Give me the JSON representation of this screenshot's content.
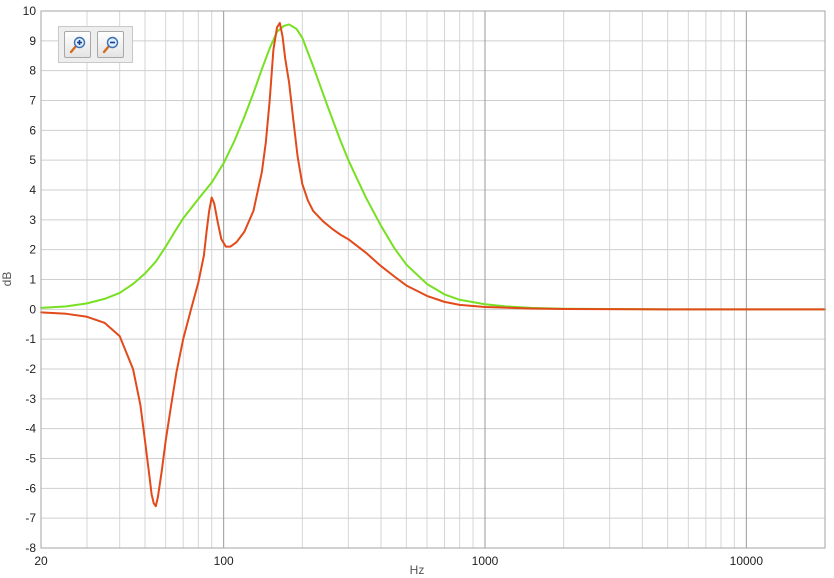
{
  "chart_data": {
    "type": "line",
    "title": "",
    "xlabel": "Hz",
    "ylabel": "dB",
    "xscale": "log",
    "xlim": [
      20,
      20000
    ],
    "ylim": [
      -8,
      10
    ],
    "grid": true,
    "legend": "none",
    "x_tick_labels": [
      {
        "value": 20,
        "label": "20"
      },
      {
        "value": 100,
        "label": "100"
      },
      {
        "value": 1000,
        "label": "1000"
      },
      {
        "value": 10000,
        "label": "10000"
      }
    ],
    "y_tick_labels": [
      {
        "value": 10,
        "label": "10"
      },
      {
        "value": 9,
        "label": "9"
      },
      {
        "value": 8,
        "label": "8"
      },
      {
        "value": 7,
        "label": "7"
      },
      {
        "value": 6,
        "label": "6"
      },
      {
        "value": 5,
        "label": "5"
      },
      {
        "value": 4,
        "label": "4"
      },
      {
        "value": 3,
        "label": "3"
      },
      {
        "value": 2,
        "label": "2"
      },
      {
        "value": 1,
        "label": "1"
      },
      {
        "value": 0,
        "label": "0"
      },
      {
        "value": -1,
        "label": "-1"
      },
      {
        "value": -2,
        "label": "-2"
      },
      {
        "value": -3,
        "label": "-3"
      },
      {
        "value": -4,
        "label": "-4"
      },
      {
        "value": -5,
        "label": "-5"
      },
      {
        "value": -6,
        "label": "-6"
      },
      {
        "value": -7,
        "label": "-7"
      },
      {
        "value": -8,
        "label": "-8"
      }
    ],
    "series": [
      {
        "color": "#77e022",
        "points": [
          [
            20,
            0.05
          ],
          [
            25,
            0.1
          ],
          [
            30,
            0.2
          ],
          [
            35,
            0.35
          ],
          [
            40,
            0.55
          ],
          [
            45,
            0.85
          ],
          [
            50,
            1.2
          ],
          [
            55,
            1.6
          ],
          [
            60,
            2.1
          ],
          [
            65,
            2.6
          ],
          [
            70,
            3.05
          ],
          [
            80,
            3.7
          ],
          [
            90,
            4.25
          ],
          [
            100,
            4.9
          ],
          [
            110,
            5.65
          ],
          [
            120,
            6.45
          ],
          [
            130,
            7.25
          ],
          [
            140,
            8.05
          ],
          [
            150,
            8.75
          ],
          [
            160,
            9.3
          ],
          [
            170,
            9.5
          ],
          [
            178,
            9.55
          ],
          [
            190,
            9.4
          ],
          [
            200,
            9.1
          ],
          [
            220,
            8.15
          ],
          [
            250,
            6.8
          ],
          [
            280,
            5.65
          ],
          [
            300,
            5.0
          ],
          [
            350,
            3.75
          ],
          [
            400,
            2.8
          ],
          [
            450,
            2.05
          ],
          [
            500,
            1.5
          ],
          [
            600,
            0.85
          ],
          [
            700,
            0.5
          ],
          [
            800,
            0.32
          ],
          [
            1000,
            0.17
          ],
          [
            1200,
            0.1
          ],
          [
            1500,
            0.05
          ],
          [
            2000,
            0.02
          ],
          [
            3000,
            0.01
          ],
          [
            5000,
            0.0
          ],
          [
            10000,
            0.0
          ],
          [
            20000,
            0.0
          ]
        ]
      },
      {
        "color": "#e24a1a",
        "points": [
          [
            20,
            -0.1
          ],
          [
            25,
            -0.15
          ],
          [
            30,
            -0.25
          ],
          [
            35,
            -0.45
          ],
          [
            40,
            -0.9
          ],
          [
            45,
            -2.0
          ],
          [
            48,
            -3.2
          ],
          [
            50,
            -4.4
          ],
          [
            52,
            -5.6
          ],
          [
            53,
            -6.2
          ],
          [
            54,
            -6.5
          ],
          [
            55,
            -6.6
          ],
          [
            56,
            -6.3
          ],
          [
            58,
            -5.4
          ],
          [
            60,
            -4.4
          ],
          [
            63,
            -3.2
          ],
          [
            66,
            -2.1
          ],
          [
            70,
            -1.0
          ],
          [
            75,
            0.0
          ],
          [
            80,
            0.9
          ],
          [
            84,
            1.8
          ],
          [
            86,
            2.6
          ],
          [
            88,
            3.3
          ],
          [
            90,
            3.75
          ],
          [
            92,
            3.55
          ],
          [
            95,
            2.9
          ],
          [
            98,
            2.35
          ],
          [
            102,
            2.1
          ],
          [
            106,
            2.1
          ],
          [
            112,
            2.25
          ],
          [
            120,
            2.6
          ],
          [
            130,
            3.3
          ],
          [
            140,
            4.6
          ],
          [
            145,
            5.6
          ],
          [
            150,
            7.0
          ],
          [
            155,
            8.7
          ],
          [
            160,
            9.45
          ],
          [
            164,
            9.6
          ],
          [
            168,
            9.15
          ],
          [
            172,
            8.4
          ],
          [
            178,
            7.6
          ],
          [
            185,
            6.3
          ],
          [
            192,
            5.1
          ],
          [
            200,
            4.2
          ],
          [
            210,
            3.65
          ],
          [
            220,
            3.3
          ],
          [
            240,
            2.95
          ],
          [
            260,
            2.7
          ],
          [
            280,
            2.5
          ],
          [
            300,
            2.35
          ],
          [
            350,
            1.9
          ],
          [
            400,
            1.45
          ],
          [
            450,
            1.1
          ],
          [
            500,
            0.8
          ],
          [
            600,
            0.45
          ],
          [
            700,
            0.25
          ],
          [
            800,
            0.15
          ],
          [
            1000,
            0.08
          ],
          [
            1500,
            0.03
          ],
          [
            2000,
            0.01
          ],
          [
            5000,
            0.0
          ],
          [
            20000,
            0.0
          ]
        ]
      }
    ]
  },
  "toolbar": {
    "zoom_in_icon": "zoom-in-icon",
    "zoom_out_icon": "zoom-out-icon"
  }
}
